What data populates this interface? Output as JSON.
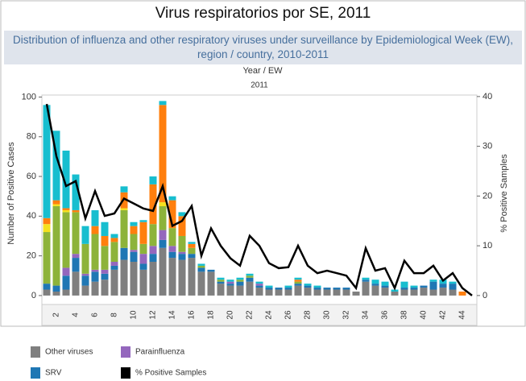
{
  "chart_data": {
    "type": "bar",
    "stacked": true,
    "title": "Virus respiratorios por SE, 2011",
    "subtitle": "Distribution of influenza and other respiratory viruses under surveillance by Epidemiological Week (EW), region / country, 2010-2011",
    "x_label": "Year  /  EW",
    "x_group": "2011",
    "y_label": "Number of Positive Cases",
    "y2_label": "% Positive Samples",
    "categories": [
      null,
      "2",
      null,
      "4",
      null,
      "6",
      null,
      "8",
      null,
      "10",
      null,
      "12",
      null,
      "14",
      null,
      "16",
      null,
      "18",
      null,
      "20",
      null,
      "22",
      null,
      "24",
      null,
      "26",
      null,
      "28",
      null,
      "30",
      null,
      "32",
      null,
      "34",
      null,
      "36",
      null,
      "38",
      null,
      "40",
      null,
      "42",
      null,
      "44",
      null
    ],
    "ylim": [
      -4.5,
      101
    ],
    "yticks": [
      0,
      20,
      40,
      60,
      80,
      100
    ],
    "y2lim": [
      -1.8,
      40.3
    ],
    "y2ticks": [
      0,
      10,
      20,
      30,
      40
    ],
    "series": [
      {
        "name": "Other viruses",
        "color": "#7f7f7f",
        "values": [
          3,
          2,
          3,
          12,
          5,
          7,
          8,
          13,
          18,
          17,
          13,
          17,
          24,
          19,
          18,
          19,
          12,
          12,
          6,
          5,
          5,
          7,
          4,
          3,
          3,
          3,
          5,
          4,
          3,
          3,
          3,
          3,
          2,
          7,
          5,
          4,
          2,
          3,
          3,
          4,
          3,
          4,
          3,
          0,
          0
        ]
      },
      {
        "name": "SRV",
        "color": "#1f77b4",
        "values": [
          3,
          3,
          7,
          7,
          5,
          5,
          3,
          2,
          6,
          5,
          3,
          4,
          4,
          3,
          3,
          2,
          2,
          1,
          1,
          1,
          2,
          2,
          1,
          1,
          1,
          1,
          1,
          1,
          1,
          1,
          1,
          1,
          0,
          1,
          1,
          1,
          0,
          1,
          1,
          1,
          4,
          2,
          3,
          0,
          0
        ]
      },
      {
        "name": "Parainfluenza",
        "color": "#9467bd",
        "values": [
          0,
          0,
          4,
          2,
          1,
          1,
          2,
          2,
          0,
          1,
          5,
          4,
          5,
          3,
          1,
          0,
          0,
          0,
          0,
          1,
          0,
          0,
          1,
          0,
          0,
          0,
          0,
          0,
          0,
          0,
          0,
          0,
          0,
          0,
          0,
          0,
          0,
          0,
          0,
          0,
          0,
          0,
          0,
          0,
          0
        ]
      },
      {
        "color": "#8db33a",
        "values": [
          26,
          40,
          28,
          21,
          15,
          18,
          12,
          10,
          19,
          8,
          5,
          11,
          12,
          9,
          8,
          3,
          1,
          0,
          1,
          0,
          1,
          1,
          0,
          0,
          0,
          0,
          1,
          0,
          0,
          0,
          0,
          0,
          0,
          0,
          0,
          0,
          0,
          0,
          0,
          0,
          0,
          0,
          0,
          0,
          0
        ]
      },
      {
        "color": "#f5e11e",
        "values": [
          4,
          1,
          1,
          0,
          0,
          0,
          0,
          0,
          1,
          0,
          0,
          0,
          2,
          0,
          0,
          0,
          0,
          0,
          0,
          0,
          0,
          0,
          0,
          0,
          0,
          0,
          0,
          0,
          0,
          0,
          0,
          0,
          0,
          0,
          0,
          0,
          0,
          0,
          0,
          0,
          0,
          0,
          0,
          0,
          0
        ]
      },
      {
        "color": "#ff7f0e",
        "values": [
          3,
          2,
          1,
          1,
          0,
          4,
          5,
          2,
          8,
          4,
          11,
          20,
          49,
          14,
          10,
          2,
          0,
          0,
          0,
          0,
          0,
          0,
          0,
          0,
          0,
          0,
          1,
          0,
          0,
          0,
          0,
          0,
          0,
          0,
          0,
          0,
          0,
          0,
          0,
          0,
          0,
          0,
          0,
          2,
          0
        ]
      },
      {
        "color": "#17becf",
        "values": [
          57,
          35,
          29,
          18,
          9,
          8,
          7,
          2,
          3,
          2,
          1,
          4,
          2,
          2,
          2,
          1,
          1,
          0,
          1,
          1,
          1,
          1,
          1,
          1,
          0,
          1,
          1,
          1,
          1,
          0,
          0,
          0,
          0,
          1,
          2,
          2,
          1,
          3,
          1,
          0,
          1,
          2,
          1,
          0,
          0
        ]
      },
      {
        "name": "% Positive Samples",
        "color": "#000000",
        "type": "line",
        "axis": "y2",
        "values": [
          38.5,
          28,
          22,
          23,
          15.5,
          21,
          16,
          16.5,
          19.5,
          18.5,
          17.5,
          17,
          22,
          14,
          15,
          18,
          8,
          13.5,
          10,
          7.5,
          6,
          12,
          10,
          6.5,
          5.5,
          5.7,
          10,
          6,
          4.5,
          5,
          4.5,
          4,
          1.5,
          9.5,
          5,
          5.5,
          1.5,
          7,
          4.5,
          4.5,
          6,
          3,
          4.5,
          1.5,
          0
        ]
      }
    ]
  }
}
